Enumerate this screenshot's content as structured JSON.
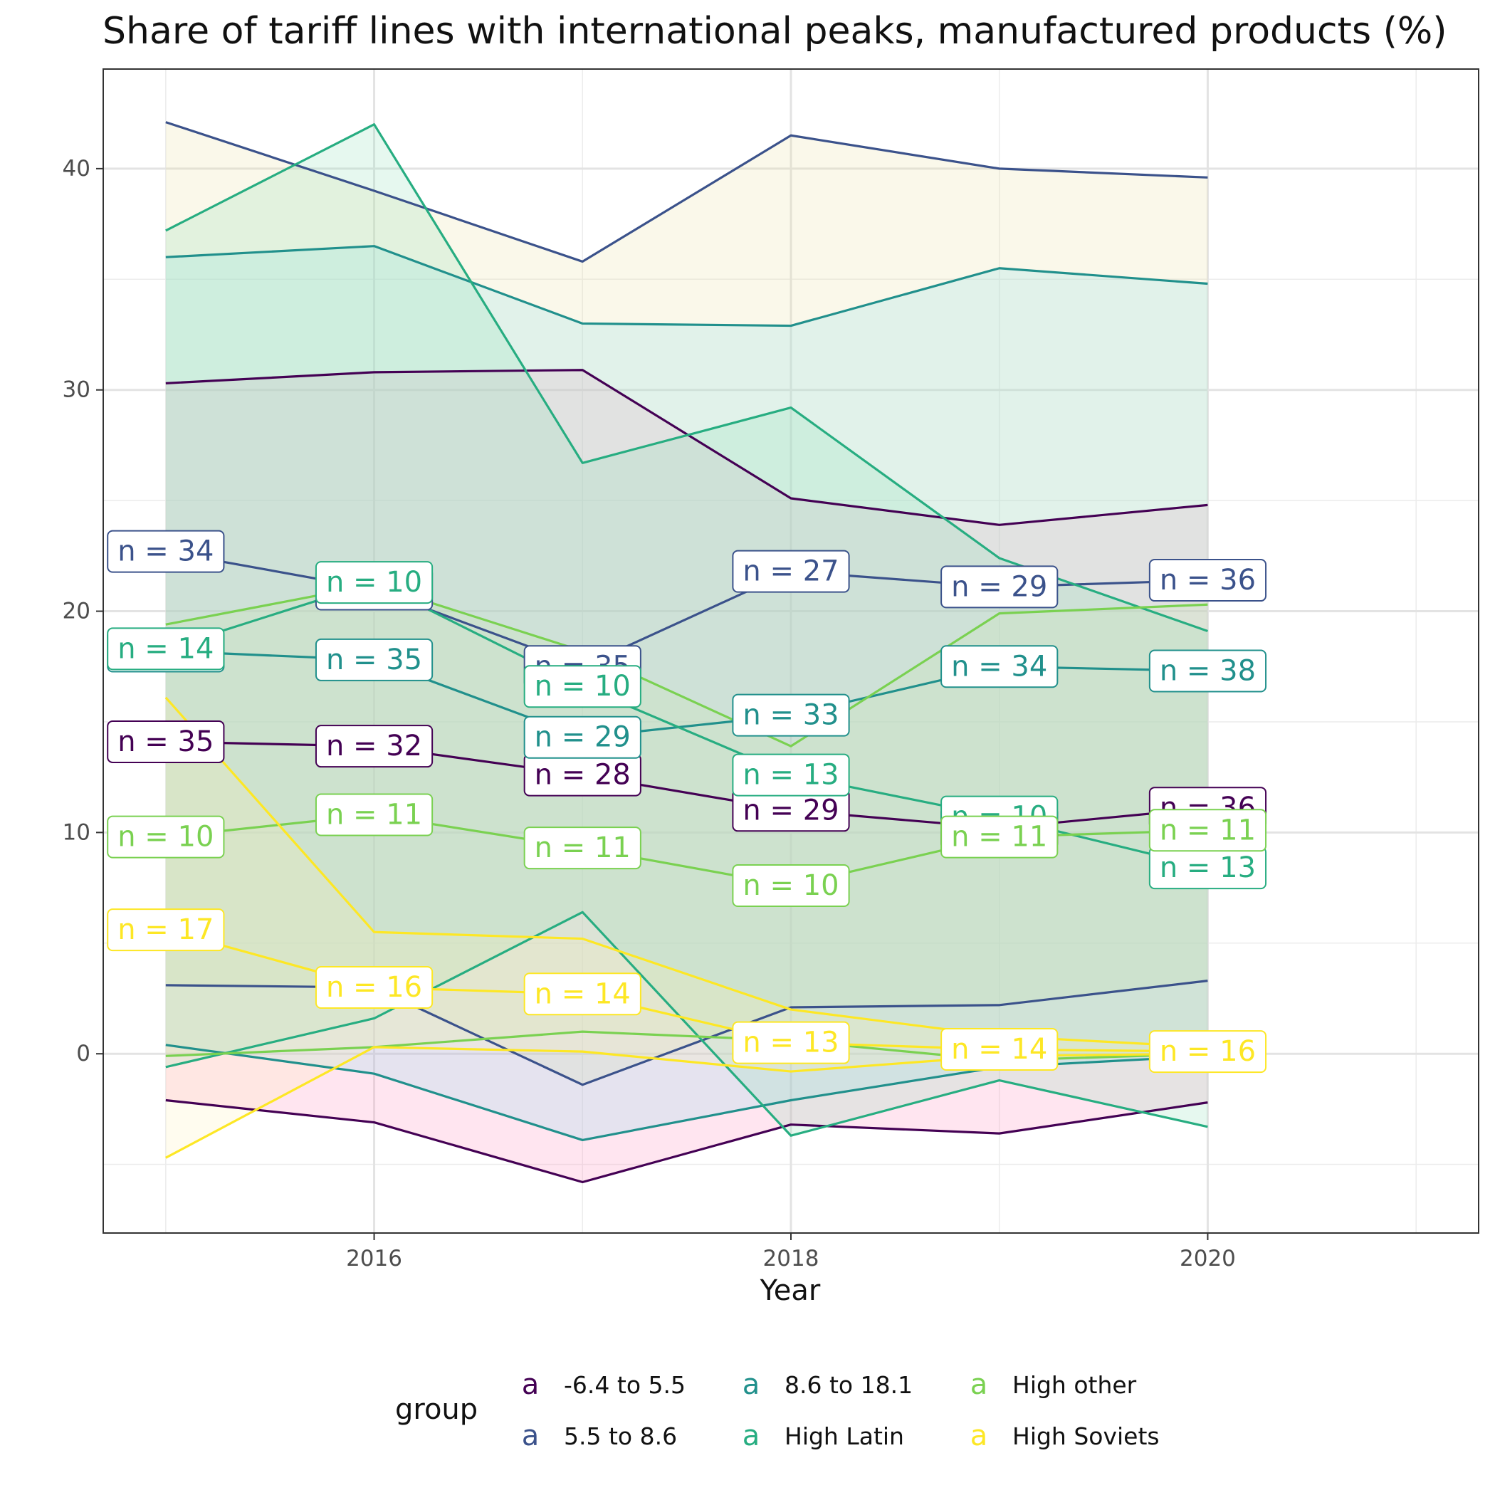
{
  "chart_data": {
    "type": "line",
    "title": "Share of tariff lines with international peaks, manufactured products (%)",
    "xlabel": "Year",
    "ylabel": "",
    "x_ticks": [
      2016,
      2018,
      2020
    ],
    "y_ticks": [
      0,
      10,
      20,
      30,
      40
    ],
    "xlim": [
      2014.7,
      2021.3
    ],
    "ylim": [
      -8.1,
      44.5
    ],
    "grid": true,
    "legend": {
      "title": "group",
      "position": "bottom",
      "key_glyph": "a"
    },
    "x": [
      2015,
      2016,
      2017,
      2018,
      2019,
      2020
    ],
    "series": [
      {
        "name": "-6.4 to 5.5",
        "color": "#440154",
        "band_color": "#ff88bb",
        "values": [
          14.1,
          13.9,
          12.6,
          11.0,
          10.2,
          11.1
        ],
        "lower": [
          -2.1,
          -3.1,
          -5.8,
          -3.2,
          -3.6,
          -2.2
        ],
        "upper": [
          30.3,
          30.8,
          30.9,
          25.1,
          23.9,
          24.8
        ],
        "labels": [
          "n = 35",
          "n = 32",
          "n = 28",
          "n = 29",
          "n = 29",
          "n = 36"
        ]
      },
      {
        "name": "5.5 to 8.6",
        "color": "#3b528b",
        "band_color": "#e8dd9e",
        "values": [
          22.7,
          21.0,
          17.5,
          21.8,
          21.1,
          21.4
        ],
        "lower": [
          3.1,
          3.0,
          -1.4,
          2.1,
          2.2,
          3.3
        ],
        "upper": [
          42.1,
          39.0,
          35.8,
          41.5,
          40.0,
          39.6
        ],
        "labels": [
          "n = 34",
          "n = 32",
          "n = 35",
          "n = 27",
          "n = 29",
          "n = 36"
        ]
      },
      {
        "name": "8.6 to 18.1",
        "color": "#21908c",
        "band_color": "#88e0ec",
        "values": [
          18.2,
          17.8,
          14.3,
          15.3,
          17.5,
          17.3
        ],
        "lower": [
          0.4,
          -0.9,
          -3.9,
          -2.1,
          -0.6,
          -0.1
        ],
        "upper": [
          36.0,
          36.5,
          33.0,
          32.9,
          35.5,
          34.8
        ],
        "labels": [
          "n = 14",
          "n = 35",
          "n = 29",
          "n = 33",
          "n = 34",
          "n = 38"
        ]
      },
      {
        "name": "High Latin",
        "color": "#27ad81",
        "band_color": "#8fe0b4",
        "values": [
          18.3,
          21.3,
          16.6,
          12.6,
          10.7,
          8.4
        ],
        "lower": [
          -0.6,
          1.6,
          6.4,
          -3.7,
          -1.2,
          -3.3
        ],
        "upper": [
          37.2,
          42.0,
          26.7,
          29.2,
          22.4,
          19.1
        ],
        "labels": [
          "n = 14",
          "n = 10",
          "n = 10",
          "n = 13",
          "n = 10",
          "n = 13"
        ]
      },
      {
        "name": "High other",
        "color": "#7ad151",
        "band_color": "#cfe8b0",
        "values": [
          9.8,
          10.8,
          9.3,
          7.6,
          9.8,
          10.1
        ],
        "lower": [
          -0.1,
          0.3,
          1.0,
          0.6,
          -0.3,
          0.0
        ],
        "upper": [
          19.4,
          21.2,
          18.2,
          13.9,
          19.9,
          20.3
        ],
        "labels": [
          "n = 10",
          "n = 11",
          "n = 11",
          "n = 10",
          "n = 11",
          "n = 11"
        ]
      },
      {
        "name": "High Soviets",
        "color": "#fde725",
        "band_color": "#fff0b8",
        "values": [
          5.6,
          3.0,
          2.7,
          0.5,
          0.2,
          0.1
        ],
        "lower": [
          -4.7,
          0.3,
          0.1,
          -0.8,
          -0.1,
          0.0
        ],
        "upper": [
          16.1,
          5.5,
          5.2,
          2.0,
          0.8,
          0.3
        ],
        "labels": [
          "n = 17",
          "n = 16",
          "n = 14",
          "n = 13",
          "n = 14",
          "n = 16"
        ]
      }
    ]
  }
}
